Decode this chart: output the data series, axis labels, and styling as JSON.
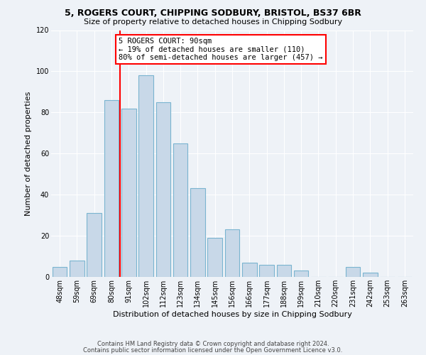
{
  "title": "5, ROGERS COURT, CHIPPING SODBURY, BRISTOL, BS37 6BR",
  "subtitle": "Size of property relative to detached houses in Chipping Sodbury",
  "xlabel": "Distribution of detached houses by size in Chipping Sodbury",
  "ylabel": "Number of detached properties",
  "footer_line1": "Contains HM Land Registry data © Crown copyright and database right 2024.",
  "footer_line2": "Contains public sector information licensed under the Open Government Licence v3.0.",
  "bin_labels": [
    "48sqm",
    "59sqm",
    "69sqm",
    "80sqm",
    "91sqm",
    "102sqm",
    "112sqm",
    "123sqm",
    "134sqm",
    "145sqm",
    "156sqm",
    "166sqm",
    "177sqm",
    "188sqm",
    "199sqm",
    "210sqm",
    "220sqm",
    "231sqm",
    "242sqm",
    "253sqm",
    "263sqm"
  ],
  "bin_values": [
    5,
    8,
    31,
    86,
    82,
    98,
    85,
    65,
    43,
    19,
    23,
    7,
    6,
    6,
    3,
    0,
    0,
    5,
    2,
    0,
    0
  ],
  "bar_color": "#c8d8e8",
  "bar_edgecolor": "#7ab4d0",
  "vline_color": "red",
  "vline_position": 3.5,
  "annotation_title": "5 ROGERS COURT: 90sqm",
  "annotation_line1": "← 19% of detached houses are smaller (110)",
  "annotation_line2": "80% of semi-detached houses are larger (457) →",
  "annotation_box_color": "white",
  "annotation_box_edgecolor": "red",
  "ylim": [
    0,
    120
  ],
  "yticks": [
    0,
    20,
    40,
    60,
    80,
    100,
    120
  ],
  "background_color": "#eef2f7",
  "grid_color": "#d0dce8",
  "title_fontsize": 9,
  "subtitle_fontsize": 8,
  "tick_fontsize": 7,
  "ylabel_fontsize": 8,
  "xlabel_fontsize": 8,
  "footer_fontsize": 6
}
